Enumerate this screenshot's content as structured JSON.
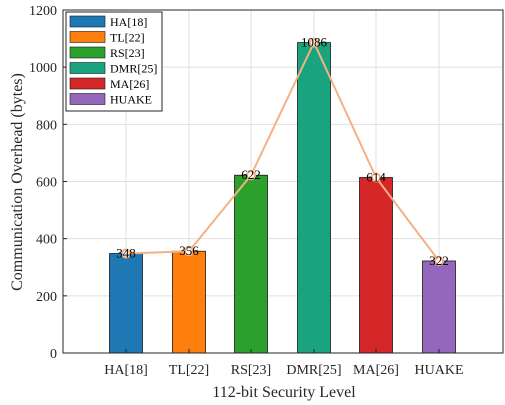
{
  "chart_data": {
    "type": "bar",
    "categories": [
      "HA[18]",
      "TL[22]",
      "RS[23]",
      "DMR[25]",
      "MA[26]",
      "HUAKE"
    ],
    "values": [
      348,
      356,
      622,
      1086,
      614,
      322
    ],
    "data_labels": [
      "348",
      "356",
      "622",
      "1086",
      "614",
      "322"
    ],
    "bar_colors": [
      "#1f77b4",
      "#ff7f0e",
      "#2ca02c",
      "#1aa37f",
      "#d62728",
      "#9467bd"
    ],
    "trend_line_color": "#f4b183",
    "xlabel": "112-bit Security Level",
    "ylabel": "Communication Overhead (bytes)",
    "ylim": [
      0,
      1200
    ],
    "yticks": [
      "0",
      "200",
      "400",
      "600",
      "800",
      "1000",
      "1200"
    ],
    "ytick_values": [
      0,
      200,
      400,
      600,
      800,
      1000,
      1200
    ],
    "grid": true,
    "legend": {
      "position": "top-left",
      "entries": [
        "HA[18]",
        "TL[22]",
        "RS[23]",
        "DMR[25]",
        "MA[26]",
        "HUAKE"
      ]
    },
    "trend_line": true
  }
}
